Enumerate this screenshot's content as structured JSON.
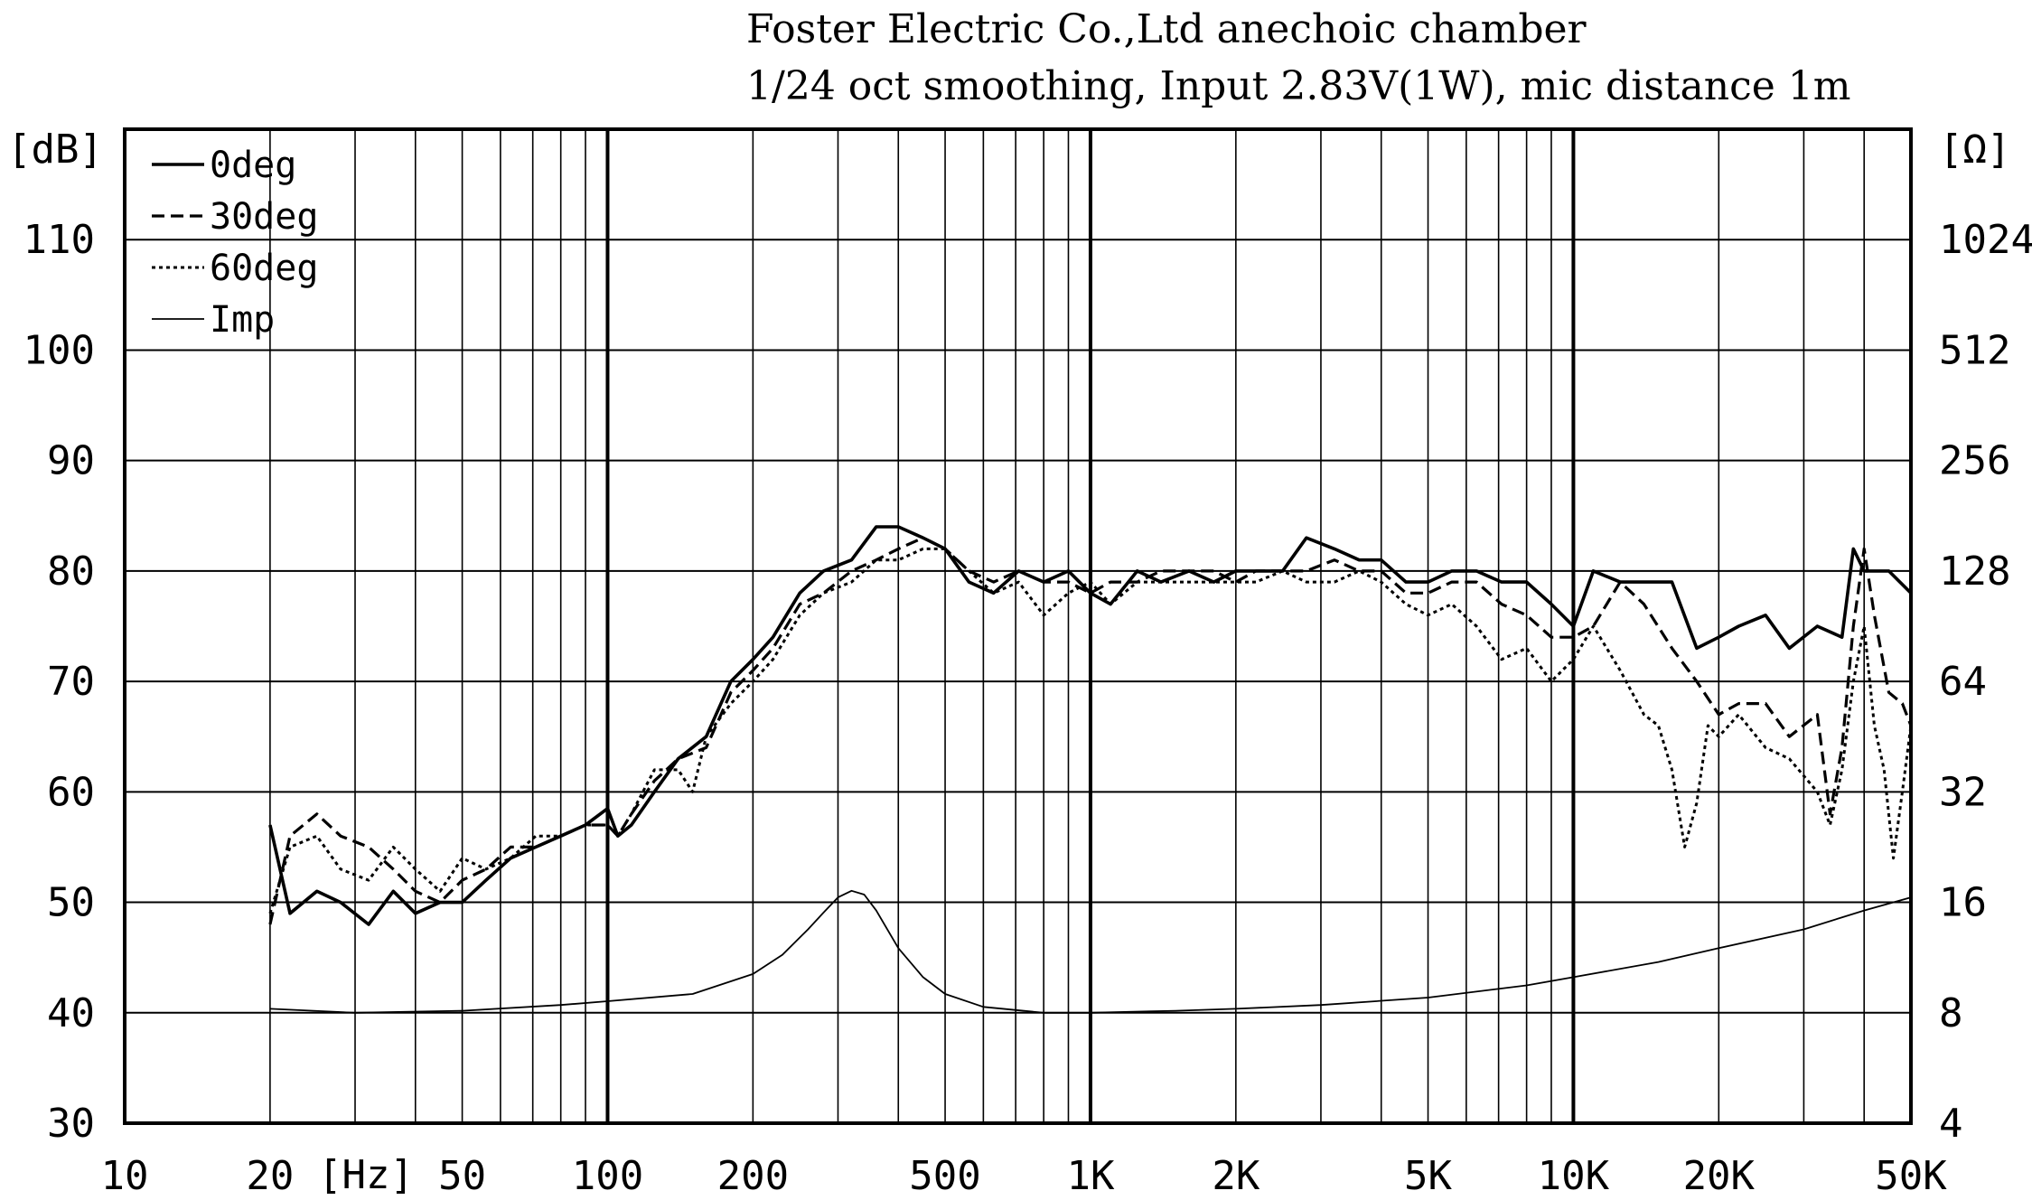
{
  "chart_data": {
    "type": "line",
    "title": "Foster Electric Co.,Ltd anechoic chamber",
    "subtitle": "1/24 oct smoothing, Input 2.83V(1W), mic distance 1m",
    "ylabel_left": "[dB]",
    "ylabel_right": "[Ω]",
    "xlabel": "[Hz]",
    "xscale": "log",
    "xlim": [
      10,
      50000
    ],
    "ylim": [
      30,
      120
    ],
    "y2lim": [
      4,
      2048
    ],
    "y2scale": "log2",
    "x_ticks": [
      {
        "value": 10,
        "label": "10"
      },
      {
        "value": 20,
        "label": "20"
      },
      {
        "value": 50,
        "label": "50"
      },
      {
        "value": 100,
        "label": "100"
      },
      {
        "value": 200,
        "label": "200"
      },
      {
        "value": 500,
        "label": "500"
      },
      {
        "value": 1000,
        "label": "1K"
      },
      {
        "value": 2000,
        "label": "2K"
      },
      {
        "value": 5000,
        "label": "5K"
      },
      {
        "value": 10000,
        "label": "10K"
      },
      {
        "value": 20000,
        "label": "20K"
      },
      {
        "value": 50000,
        "label": "50K"
      }
    ],
    "y_ticks": [
      30,
      40,
      50,
      60,
      70,
      80,
      90,
      100,
      110
    ],
    "y2_ticks": [
      "4",
      "8",
      "16",
      "32",
      "64",
      "128",
      "256",
      "512",
      "1024"
    ],
    "grid": true,
    "legend_position": "top-left",
    "series": [
      {
        "name": "0deg",
        "style": "solid-thick",
        "x": [
          20,
          22,
          25,
          28,
          32,
          36,
          40,
          45,
          50,
          56,
          63,
          71,
          80,
          90,
          100,
          105,
          112,
          125,
          140,
          160,
          180,
          200,
          220,
          250,
          280,
          320,
          360,
          400,
          450,
          500,
          560,
          630,
          710,
          800,
          900,
          1000,
          1100,
          1250,
          1400,
          1600,
          1800,
          2000,
          2200,
          2500,
          2800,
          3200,
          3600,
          4000,
          4500,
          5000,
          5600,
          6300,
          7100,
          8000,
          9000,
          10000,
          11000,
          12500,
          14000,
          16000,
          18000,
          20000,
          22000,
          25000,
          28000,
          32000,
          36000,
          38000,
          40000,
          42000,
          45000,
          50000
        ],
        "y": [
          57,
          49,
          51,
          50,
          48,
          51,
          49,
          50,
          50,
          52,
          54,
          55,
          56,
          57,
          58.5,
          56,
          57,
          60,
          63,
          65,
          70,
          72,
          74,
          78,
          80,
          81,
          84,
          84,
          83,
          82,
          79,
          78,
          80,
          79,
          80,
          78,
          77,
          80,
          79,
          80,
          79,
          80,
          80,
          80,
          83,
          82,
          81,
          81,
          79,
          79,
          80,
          80,
          79,
          79,
          77,
          75,
          80,
          79,
          79,
          79,
          73,
          74,
          75,
          76,
          73,
          75,
          74,
          82,
          80,
          80,
          80,
          78
        ]
      },
      {
        "name": "30deg",
        "style": "dashed",
        "x": [
          20,
          22,
          25,
          28,
          32,
          36,
          40,
          45,
          50,
          56,
          63,
          71,
          80,
          90,
          100,
          105,
          112,
          125,
          140,
          160,
          180,
          200,
          220,
          250,
          280,
          320,
          360,
          400,
          450,
          500,
          560,
          630,
          710,
          800,
          900,
          1000,
          1100,
          1250,
          1400,
          1600,
          1800,
          2000,
          2200,
          2500,
          2800,
          3200,
          3600,
          4000,
          4500,
          5000,
          5600,
          6300,
          7100,
          8000,
          9000,
          10000,
          11000,
          12500,
          14000,
          16000,
          18000,
          20000,
          22000,
          25000,
          28000,
          32000,
          34000,
          36000,
          38000,
          40000,
          42000,
          45000,
          48000,
          50000
        ],
        "y": [
          48,
          56,
          58,
          56,
          55,
          53,
          51,
          50,
          52,
          53,
          55,
          55,
          56,
          57,
          57,
          56,
          58,
          61,
          63,
          64,
          69,
          71,
          73,
          77,
          78,
          80,
          81,
          82,
          83,
          82,
          80,
          79,
          80,
          79,
          79,
          78,
          79,
          79,
          80,
          80,
          80,
          79,
          80,
          80,
          80,
          81,
          80,
          80,
          78,
          78,
          79,
          79,
          77,
          76,
          74,
          74,
          75,
          79,
          77,
          73,
          70,
          67,
          68,
          68,
          65,
          67,
          58,
          64,
          75,
          82,
          76,
          69,
          68,
          66
        ]
      },
      {
        "name": "60deg",
        "style": "dotted",
        "x": [
          20,
          22,
          25,
          28,
          32,
          36,
          40,
          45,
          50,
          56,
          63,
          71,
          80,
          90,
          100,
          105,
          112,
          125,
          140,
          150,
          160,
          180,
          200,
          220,
          250,
          280,
          320,
          360,
          400,
          450,
          500,
          560,
          630,
          710,
          800,
          900,
          1000,
          1100,
          1250,
          1400,
          1600,
          1800,
          2000,
          2200,
          2500,
          2800,
          3200,
          3600,
          4000,
          4500,
          5000,
          5600,
          6300,
          7100,
          8000,
          9000,
          10000,
          11000,
          12500,
          14000,
          15000,
          16000,
          17000,
          18000,
          19000,
          20000,
          22000,
          25000,
          28000,
          32000,
          34000,
          36000,
          38000,
          40000,
          42000,
          44000,
          46000,
          48000,
          50000
        ],
        "y": [
          49,
          55,
          56,
          53,
          52,
          55,
          53,
          51,
          54,
          53,
          54,
          56,
          56,
          57,
          57,
          56,
          58,
          62,
          62,
          60,
          65,
          68,
          70,
          72,
          76,
          78,
          79,
          81,
          81,
          82,
          82,
          80,
          78,
          79,
          76,
          78,
          79,
          77,
          79,
          79,
          79,
          79,
          79,
          79,
          80,
          79,
          79,
          80,
          79,
          77,
          76,
          77,
          75,
          72,
          73,
          70,
          72,
          75,
          71,
          67,
          66,
          62,
          55,
          59,
          66,
          65,
          67,
          64,
          63,
          60,
          57,
          62,
          70,
          75,
          66,
          62,
          54,
          60,
          66
        ]
      },
      {
        "name": "Imp",
        "style": "solid-thin",
        "x": [
          20,
          30,
          50,
          80,
          100,
          150,
          200,
          230,
          260,
          280,
          300,
          320,
          340,
          360,
          400,
          450,
          500,
          600,
          800,
          1000,
          1500,
          2000,
          3000,
          5000,
          8000,
          10000,
          15000,
          20000,
          30000,
          40000,
          50000
        ],
        "y": [
          8.2,
          8.0,
          8.1,
          8.4,
          8.6,
          9.0,
          10.2,
          11.5,
          13.5,
          15.0,
          16.5,
          17.2,
          16.8,
          15.2,
          12.0,
          10.0,
          9.0,
          8.3,
          8.0,
          8.0,
          8.1,
          8.2,
          8.4,
          8.8,
          9.5,
          10.0,
          11.0,
          12.0,
          13.5,
          15.2,
          16.5
        ]
      }
    ]
  }
}
